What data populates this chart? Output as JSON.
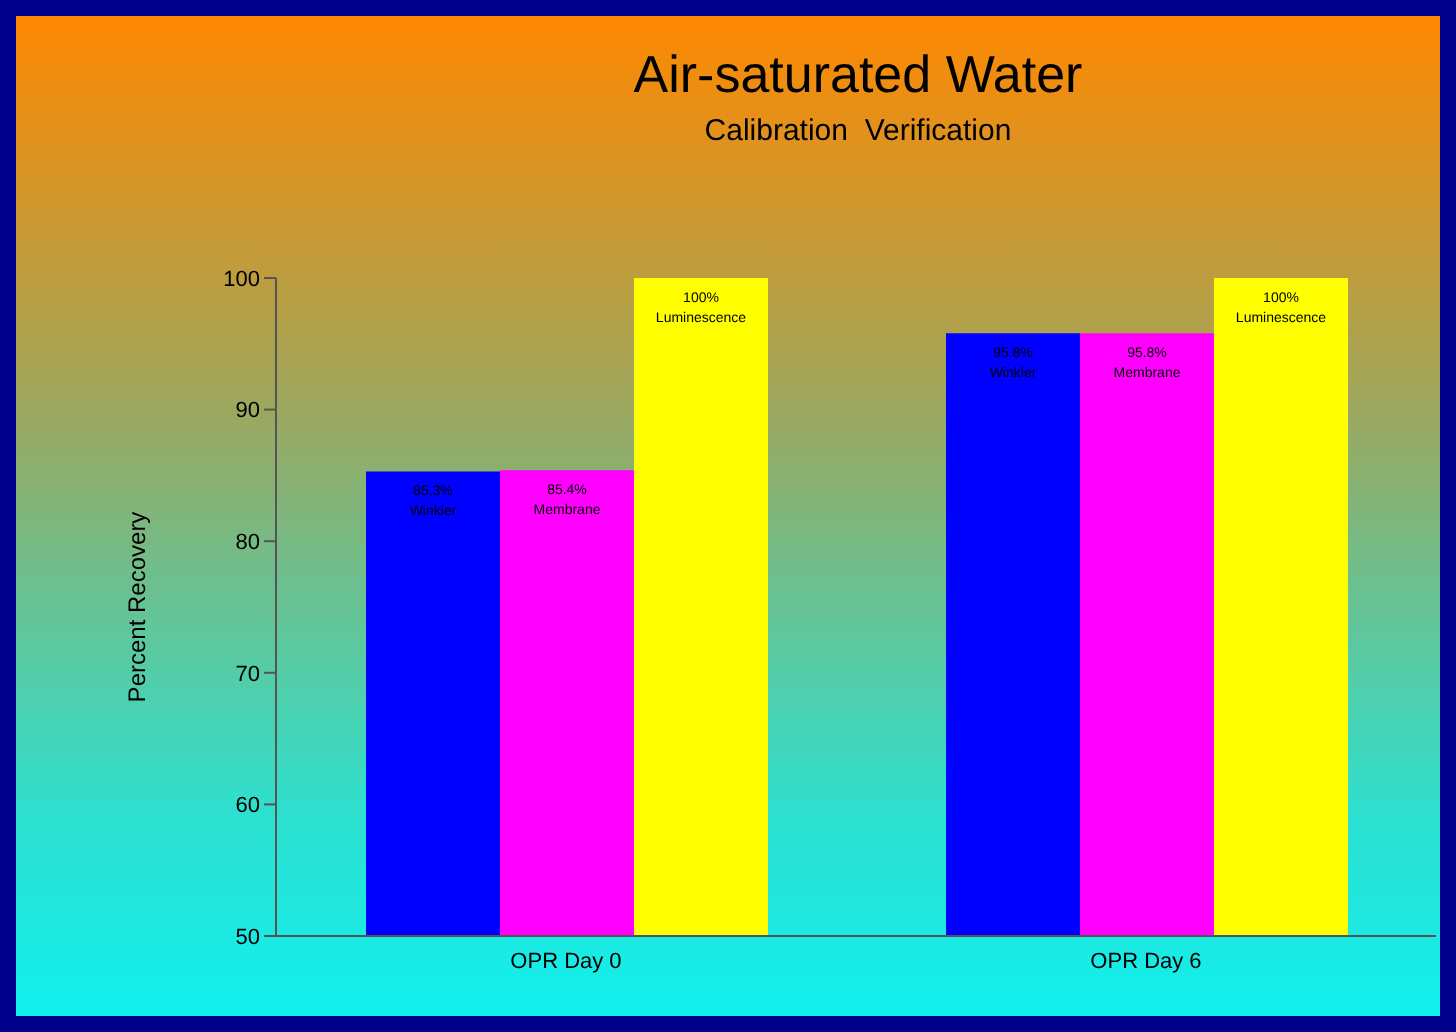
{
  "chart_data": {
    "type": "bar",
    "title": "Air-saturated Water",
    "subtitle": "Calibration  Verification",
    "ylabel": "Percent Recovery",
    "categories": [
      "OPR Day 0",
      "OPR Day 6"
    ],
    "series": [
      {
        "color": "#0000ff",
        "values": [
          85.3,
          95.8
        ],
        "value_labels": [
          "85.3%\nWinkler",
          "95.8%\nWinkler"
        ]
      },
      {
        "color": "#ff00ff",
        "values": [
          85.4,
          95.8
        ],
        "value_labels": [
          "85.4%\nMembrane",
          "95.8%\nMembrane"
        ]
      },
      {
        "color": "#ffff00",
        "values": [
          100,
          100
        ],
        "value_labels": [
          "100%\nLuminescence",
          "100%\nLuminescence"
        ]
      }
    ],
    "ylim": [
      50,
      100
    ],
    "yticks": [
      50,
      60,
      70,
      80,
      90,
      100
    ],
    "grid": false,
    "legend": false
  }
}
